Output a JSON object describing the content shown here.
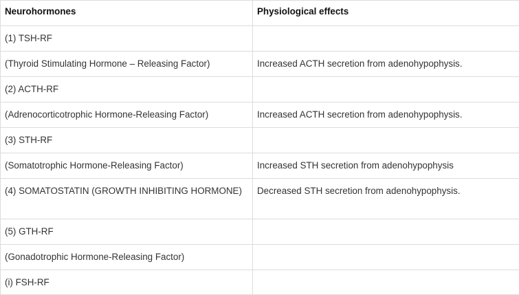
{
  "table": {
    "headers": [
      "Neurohormones",
      "Physiological effects"
    ],
    "rows": [
      [
        "(1) TSH-RF",
        ""
      ],
      [
        "(Thyroid Stimulating Hormone – Releasing Factor)",
        "Increased ACTH secretion from adenohypophysis."
      ],
      [
        "(2) ACTH-RF",
        ""
      ],
      [
        "(Adrenocorticotrophic Hormone-Releasing Factor)",
        "Increased ACTH secretion from adenohypophysis."
      ],
      [
        "(3) STH-RF",
        ""
      ],
      [
        "(Somatotrophic Hormone-Releasing Factor)",
        "Increased STH secretion from adenohypophysis"
      ],
      [
        "(4) SOMATOSTATIN (GROWTH INHIBITING HORMONE)",
        "Decreased STH secretion from adenohypophysis."
      ],
      [
        "(5) GTH-RF",
        ""
      ],
      [
        "(Gonadotrophic Hormone-Releasing Factor)",
        ""
      ],
      [
        "(i) FSH-RF",
        ""
      ]
    ]
  }
}
